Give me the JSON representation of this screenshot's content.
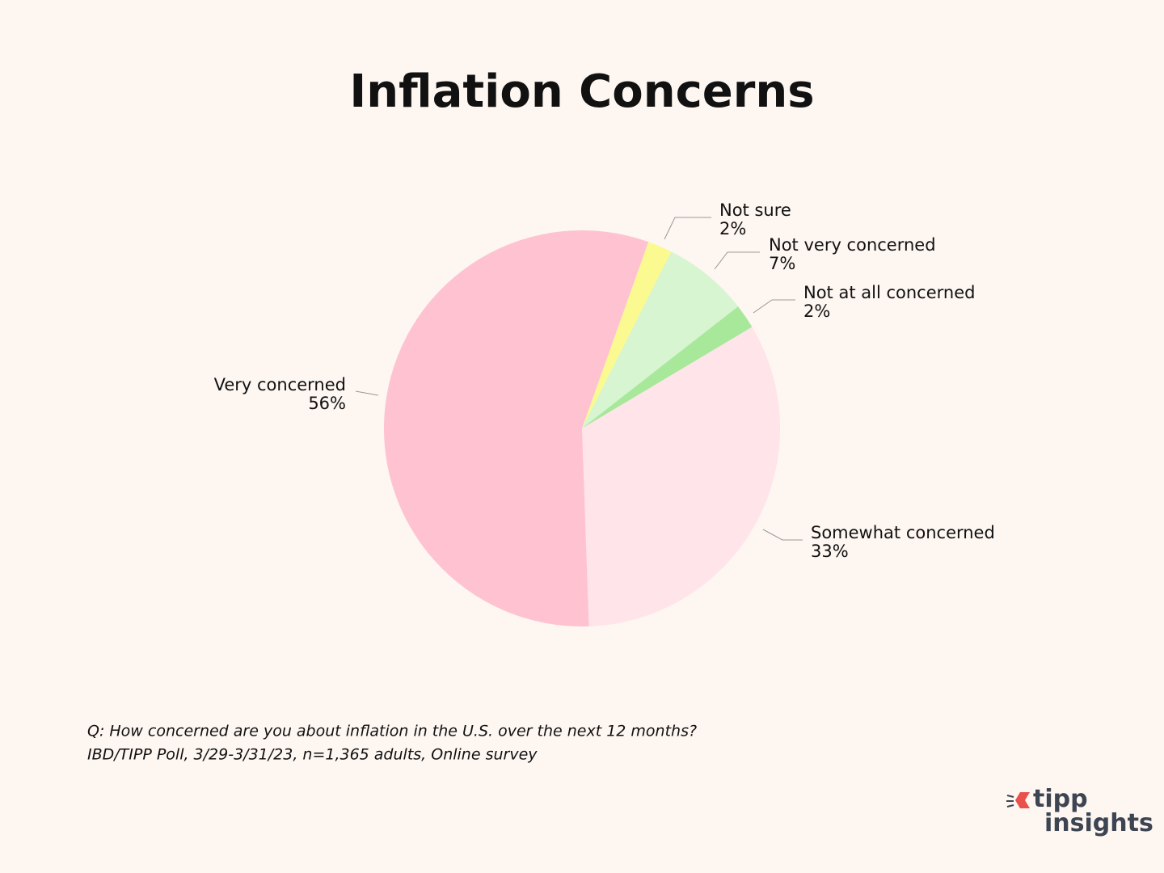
{
  "chart_data": {
    "type": "pie",
    "title": "Inflation Concerns",
    "categories": [
      "Not sure",
      "Not very concerned",
      "Not at all concerned",
      "Somewhat concerned",
      "Very concerned"
    ],
    "values": [
      2,
      7,
      2,
      33,
      56
    ],
    "value_labels": [
      "2%",
      "7%",
      "2%",
      "33%",
      "56%"
    ],
    "colors": [
      "#fafa90",
      "#d6f5d0",
      "#a8e89a",
      "#ffe4ea",
      "#ffc2d1"
    ],
    "notes": [
      "Q:  How concerned are you about inflation in the U.S. over the next 12 months?",
      "IBD/TIPP Poll, 3/29-3/31/23, n=1,365 adults, Online survey"
    ]
  },
  "logo": {
    "line1": "tipp",
    "line2": "insights"
  }
}
